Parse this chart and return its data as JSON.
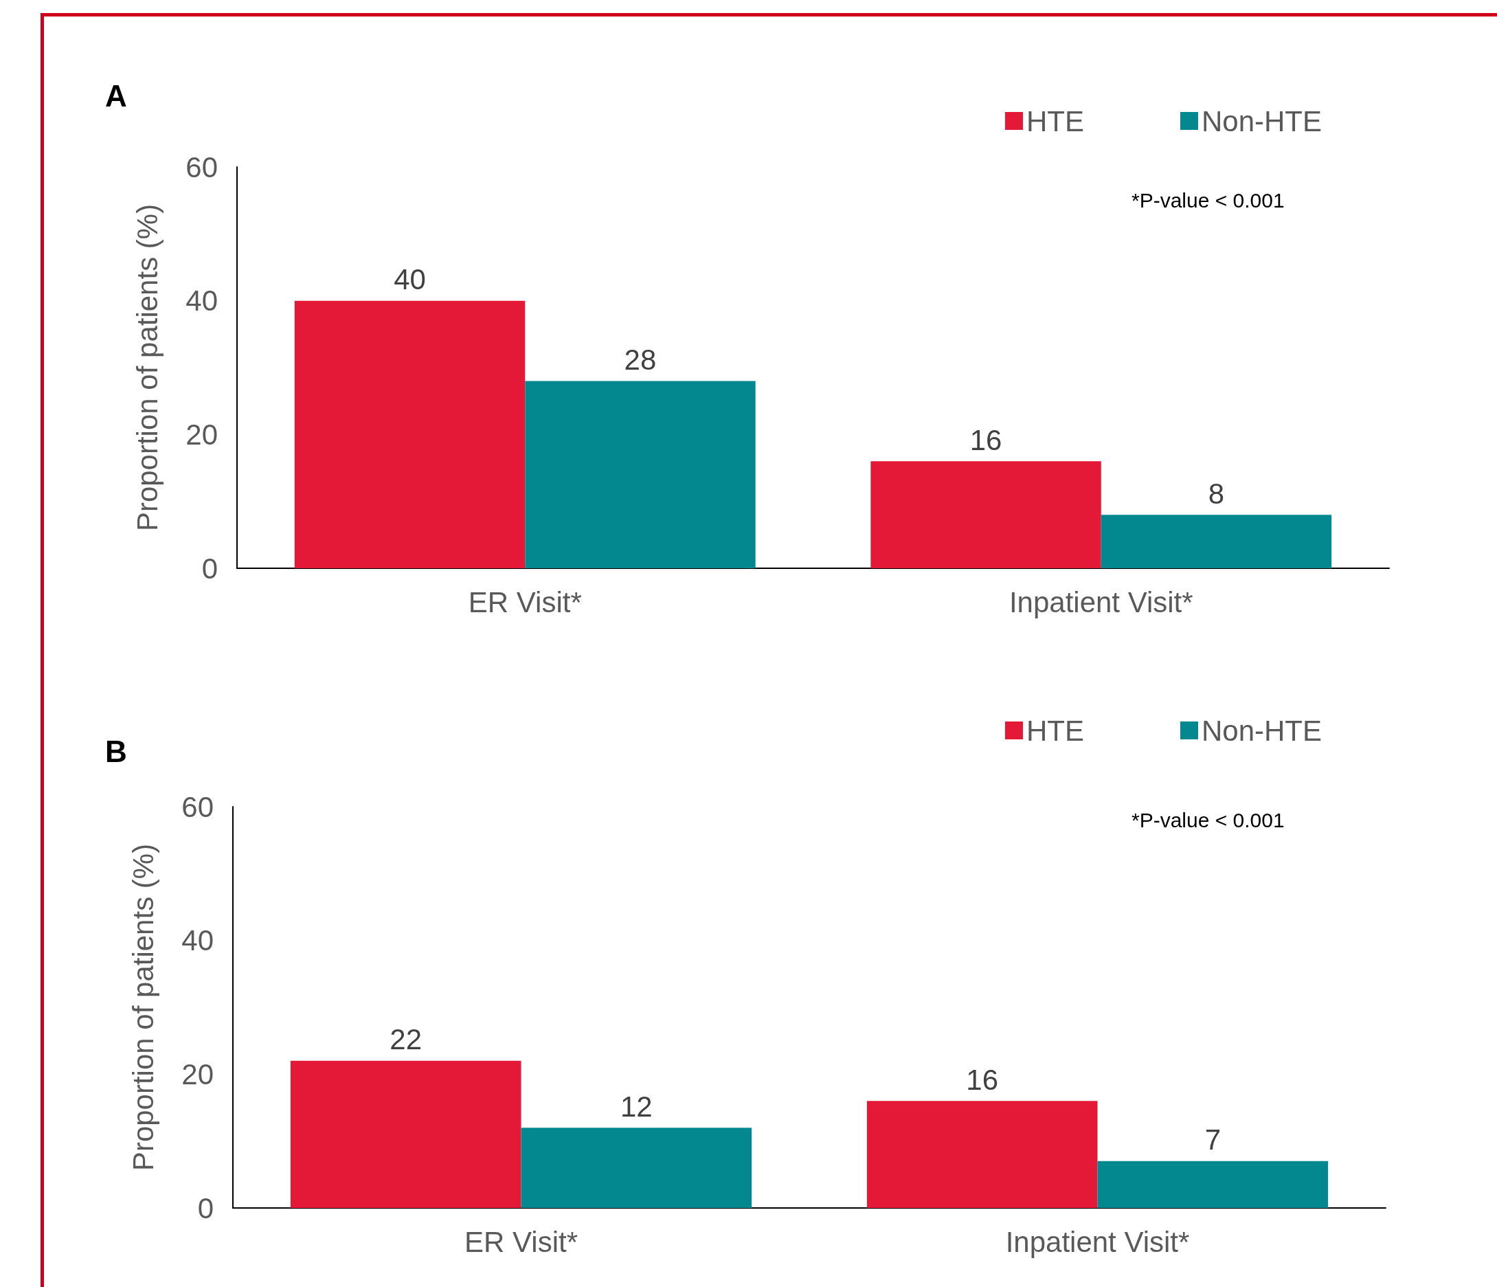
{
  "chart_data": [
    {
      "type": "bar",
      "title": "A",
      "categories": [
        "ER Visit*",
        "Inpatient Visit*"
      ],
      "ylabel": "Proportion of patients (%)",
      "ylim": [
        0,
        60
      ],
      "yticks": [
        0,
        20,
        40,
        60
      ],
      "data_labels": true,
      "legend": "top right",
      "annotations": [
        "*P-value < 0.001"
      ],
      "series": [
        {
          "name": "HTE",
          "color": "#e31937",
          "values": [
            40,
            16
          ]
        },
        {
          "name": "Non-HTE",
          "color": "#038890",
          "values": [
            28,
            8
          ]
        }
      ]
    },
    {
      "type": "bar",
      "title": "B",
      "categories": [
        "ER Visit*",
        "Inpatient Visit*"
      ],
      "ylabel": "Proportion of patients (%)",
      "ylim": [
        0,
        60
      ],
      "yticks": [
        0,
        20,
        40,
        60
      ],
      "data_labels": true,
      "legend": "top right",
      "annotations": [
        "*P-value < 0.001"
      ],
      "series": [
        {
          "name": "HTE",
          "color": "#e31937",
          "values": [
            22,
            16
          ]
        },
        {
          "name": "Non-HTE",
          "color": "#038890",
          "values": [
            12,
            7
          ]
        }
      ]
    }
  ]
}
